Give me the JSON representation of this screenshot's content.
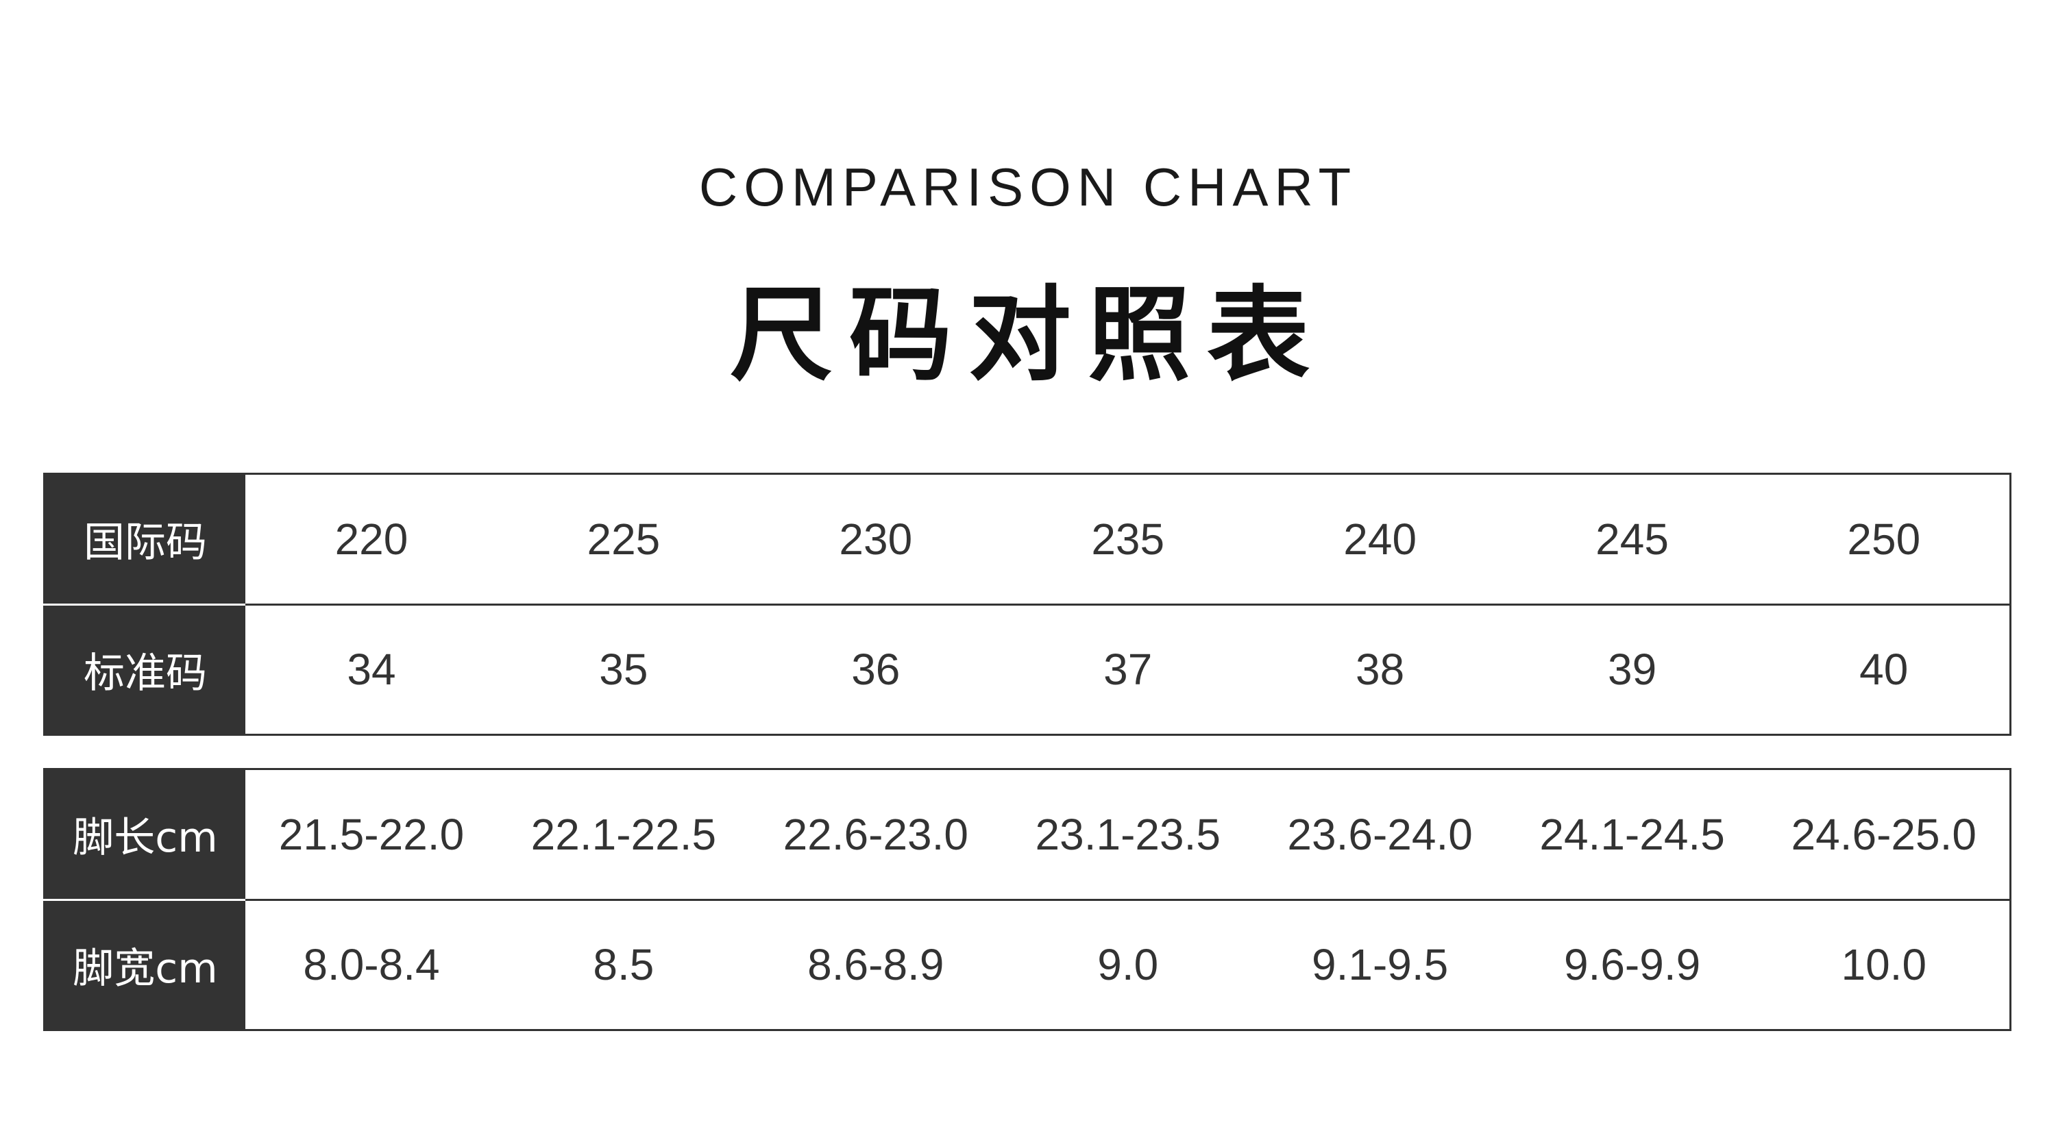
{
  "header": {
    "subtitle": "COMPARISON CHART",
    "title": "尺码对照表"
  },
  "table1": {
    "rows": [
      {
        "label": "国际码",
        "values": [
          "220",
          "225",
          "230",
          "235",
          "240",
          "245",
          "250"
        ]
      },
      {
        "label": "标准码",
        "values": [
          "34",
          "35",
          "36",
          "37",
          "38",
          "39",
          "40"
        ]
      }
    ]
  },
  "table2": {
    "rows": [
      {
        "label": "脚长cm",
        "values": [
          "21.5-22.0",
          "22.1-22.5",
          "22.6-23.0",
          "23.1-23.5",
          "23.6-24.0",
          "24.1-24.5",
          "24.6-25.0"
        ]
      },
      {
        "label": "脚宽cm",
        "values": [
          "8.0-8.4",
          "8.5",
          "8.6-8.9",
          "9.0",
          "9.1-9.5",
          "9.6-9.9",
          "10.0"
        ]
      }
    ]
  },
  "colors": {
    "header_bg": "#333333",
    "text": "#333333",
    "background": "#ffffff"
  }
}
